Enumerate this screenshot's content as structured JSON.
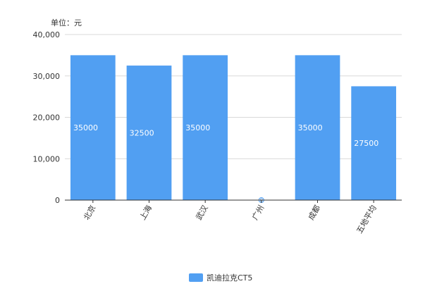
{
  "chart_data": {
    "type": "bar",
    "unit_label": "单位：元",
    "categories": [
      "北京",
      "上海",
      "武汉",
      "广州",
      "成都",
      "五地平均"
    ],
    "series": [
      {
        "name": "凯迪拉克CT5",
        "values": [
          35000,
          32500,
          35000,
          0,
          35000,
          27500
        ]
      }
    ],
    "data_labels": [
      "35000",
      "32500",
      "35000",
      "0",
      "35000",
      "27500"
    ],
    "ylim": [
      0,
      40000
    ],
    "yticks": [
      0,
      10000,
      20000,
      30000,
      40000
    ],
    "ytick_labels": [
      "0",
      "10,000",
      "20,000",
      "30,000",
      "40,000"
    ],
    "grid": true,
    "legend_position": "bottom-center",
    "colors": {
      "bar": "#519ff2",
      "grid": "#d9d9d9",
      "axis": "#333333"
    }
  }
}
